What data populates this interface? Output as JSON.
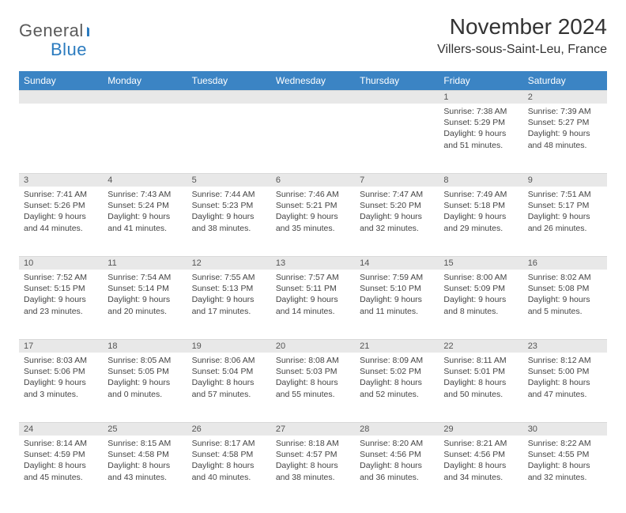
{
  "logo": {
    "part1": "General",
    "part2": "Blue"
  },
  "title": "November 2024",
  "location": "Villers-sous-Saint-Leu, France",
  "colors": {
    "header_bg": "#3b84c4",
    "header_text": "#ffffff",
    "daynum_bg": "#e8e8e8",
    "text": "#444444",
    "logo_gray": "#5a5a5a",
    "logo_blue": "#2b7bbf"
  },
  "day_headers": [
    "Sunday",
    "Monday",
    "Tuesday",
    "Wednesday",
    "Thursday",
    "Friday",
    "Saturday"
  ],
  "weeks": [
    [
      null,
      null,
      null,
      null,
      null,
      {
        "n": "1",
        "sunrise": "Sunrise: 7:38 AM",
        "sunset": "Sunset: 5:29 PM",
        "day": "Daylight: 9 hours and 51 minutes."
      },
      {
        "n": "2",
        "sunrise": "Sunrise: 7:39 AM",
        "sunset": "Sunset: 5:27 PM",
        "day": "Daylight: 9 hours and 48 minutes."
      }
    ],
    [
      {
        "n": "3",
        "sunrise": "Sunrise: 7:41 AM",
        "sunset": "Sunset: 5:26 PM",
        "day": "Daylight: 9 hours and 44 minutes."
      },
      {
        "n": "4",
        "sunrise": "Sunrise: 7:43 AM",
        "sunset": "Sunset: 5:24 PM",
        "day": "Daylight: 9 hours and 41 minutes."
      },
      {
        "n": "5",
        "sunrise": "Sunrise: 7:44 AM",
        "sunset": "Sunset: 5:23 PM",
        "day": "Daylight: 9 hours and 38 minutes."
      },
      {
        "n": "6",
        "sunrise": "Sunrise: 7:46 AM",
        "sunset": "Sunset: 5:21 PM",
        "day": "Daylight: 9 hours and 35 minutes."
      },
      {
        "n": "7",
        "sunrise": "Sunrise: 7:47 AM",
        "sunset": "Sunset: 5:20 PM",
        "day": "Daylight: 9 hours and 32 minutes."
      },
      {
        "n": "8",
        "sunrise": "Sunrise: 7:49 AM",
        "sunset": "Sunset: 5:18 PM",
        "day": "Daylight: 9 hours and 29 minutes."
      },
      {
        "n": "9",
        "sunrise": "Sunrise: 7:51 AM",
        "sunset": "Sunset: 5:17 PM",
        "day": "Daylight: 9 hours and 26 minutes."
      }
    ],
    [
      {
        "n": "10",
        "sunrise": "Sunrise: 7:52 AM",
        "sunset": "Sunset: 5:15 PM",
        "day": "Daylight: 9 hours and 23 minutes."
      },
      {
        "n": "11",
        "sunrise": "Sunrise: 7:54 AM",
        "sunset": "Sunset: 5:14 PM",
        "day": "Daylight: 9 hours and 20 minutes."
      },
      {
        "n": "12",
        "sunrise": "Sunrise: 7:55 AM",
        "sunset": "Sunset: 5:13 PM",
        "day": "Daylight: 9 hours and 17 minutes."
      },
      {
        "n": "13",
        "sunrise": "Sunrise: 7:57 AM",
        "sunset": "Sunset: 5:11 PM",
        "day": "Daylight: 9 hours and 14 minutes."
      },
      {
        "n": "14",
        "sunrise": "Sunrise: 7:59 AM",
        "sunset": "Sunset: 5:10 PM",
        "day": "Daylight: 9 hours and 11 minutes."
      },
      {
        "n": "15",
        "sunrise": "Sunrise: 8:00 AM",
        "sunset": "Sunset: 5:09 PM",
        "day": "Daylight: 9 hours and 8 minutes."
      },
      {
        "n": "16",
        "sunrise": "Sunrise: 8:02 AM",
        "sunset": "Sunset: 5:08 PM",
        "day": "Daylight: 9 hours and 5 minutes."
      }
    ],
    [
      {
        "n": "17",
        "sunrise": "Sunrise: 8:03 AM",
        "sunset": "Sunset: 5:06 PM",
        "day": "Daylight: 9 hours and 3 minutes."
      },
      {
        "n": "18",
        "sunrise": "Sunrise: 8:05 AM",
        "sunset": "Sunset: 5:05 PM",
        "day": "Daylight: 9 hours and 0 minutes."
      },
      {
        "n": "19",
        "sunrise": "Sunrise: 8:06 AM",
        "sunset": "Sunset: 5:04 PM",
        "day": "Daylight: 8 hours and 57 minutes."
      },
      {
        "n": "20",
        "sunrise": "Sunrise: 8:08 AM",
        "sunset": "Sunset: 5:03 PM",
        "day": "Daylight: 8 hours and 55 minutes."
      },
      {
        "n": "21",
        "sunrise": "Sunrise: 8:09 AM",
        "sunset": "Sunset: 5:02 PM",
        "day": "Daylight: 8 hours and 52 minutes."
      },
      {
        "n": "22",
        "sunrise": "Sunrise: 8:11 AM",
        "sunset": "Sunset: 5:01 PM",
        "day": "Daylight: 8 hours and 50 minutes."
      },
      {
        "n": "23",
        "sunrise": "Sunrise: 8:12 AM",
        "sunset": "Sunset: 5:00 PM",
        "day": "Daylight: 8 hours and 47 minutes."
      }
    ],
    [
      {
        "n": "24",
        "sunrise": "Sunrise: 8:14 AM",
        "sunset": "Sunset: 4:59 PM",
        "day": "Daylight: 8 hours and 45 minutes."
      },
      {
        "n": "25",
        "sunrise": "Sunrise: 8:15 AM",
        "sunset": "Sunset: 4:58 PM",
        "day": "Daylight: 8 hours and 43 minutes."
      },
      {
        "n": "26",
        "sunrise": "Sunrise: 8:17 AM",
        "sunset": "Sunset: 4:58 PM",
        "day": "Daylight: 8 hours and 40 minutes."
      },
      {
        "n": "27",
        "sunrise": "Sunrise: 8:18 AM",
        "sunset": "Sunset: 4:57 PM",
        "day": "Daylight: 8 hours and 38 minutes."
      },
      {
        "n": "28",
        "sunrise": "Sunrise: 8:20 AM",
        "sunset": "Sunset: 4:56 PM",
        "day": "Daylight: 8 hours and 36 minutes."
      },
      {
        "n": "29",
        "sunrise": "Sunrise: 8:21 AM",
        "sunset": "Sunset: 4:56 PM",
        "day": "Daylight: 8 hours and 34 minutes."
      },
      {
        "n": "30",
        "sunrise": "Sunrise: 8:22 AM",
        "sunset": "Sunset: 4:55 PM",
        "day": "Daylight: 8 hours and 32 minutes."
      }
    ]
  ]
}
